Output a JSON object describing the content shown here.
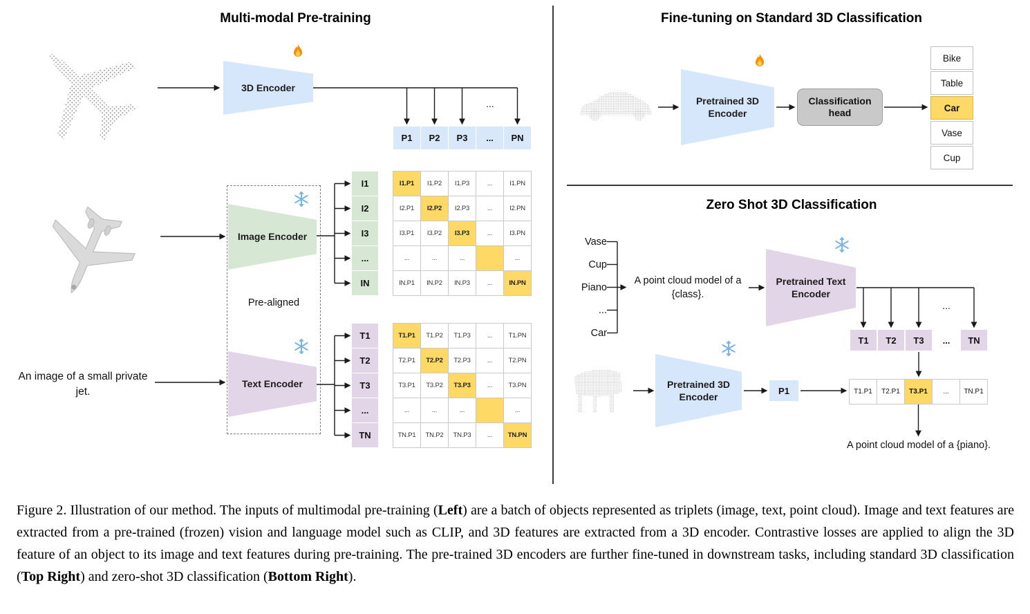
{
  "left_panel": {
    "title": "Multi-modal Pre-training",
    "encoder_3d_label": "3D Encoder",
    "image_encoder_label": "Image Encoder",
    "text_encoder_label": "Text Encoder",
    "pre_aligned_label": "Pre-aligned",
    "image_caption": "An image of a small private jet.",
    "ellipsis": "...",
    "p_row": [
      "P1",
      "P2",
      "P3",
      "...",
      "PN"
    ],
    "i_col": [
      "I1",
      "I2",
      "I3",
      "...",
      "IN"
    ],
    "t_col": [
      "T1",
      "T2",
      "T3",
      "...",
      "TN"
    ],
    "i_matrix": [
      [
        "I1.P1",
        "I1.P2",
        "I1.P3",
        "...",
        "I1.PN"
      ],
      [
        "I2.P1",
        "I2.P2",
        "I2.P3",
        "...",
        "I2.PN"
      ],
      [
        "I3.P1",
        "I3.P2",
        "I3.P3",
        "...",
        "I3.PN"
      ],
      [
        "...",
        "...",
        "...",
        "",
        "..."
      ],
      [
        "IN.P1",
        "IN.P2",
        "IN.P3",
        "...",
        "IN.PN"
      ]
    ],
    "t_matrix": [
      [
        "T1.P1",
        "T1.P2",
        "T1.P3",
        "...",
        "T1.PN"
      ],
      [
        "T2.P1",
        "T2.P2",
        "T2.P3",
        "...",
        "T2.PN"
      ],
      [
        "T3.P1",
        "T3.P2",
        "T3.P3",
        "...",
        "T3.PN"
      ],
      [
        "...",
        "...",
        "...",
        "",
        "..."
      ],
      [
        "TN.P1",
        "TN.P2",
        "TN.P3",
        "...",
        "TN.PN"
      ]
    ]
  },
  "top_right_panel": {
    "title": "Fine-tuning on Standard 3D Classification",
    "encoder_label": "Pretrained 3D Encoder",
    "classification_head_label": "Classification head",
    "classes": [
      "Bike",
      "Table",
      "Car",
      "Vase",
      "Cup"
    ],
    "highlighted_class_index": 2
  },
  "bottom_right_panel": {
    "title": "Zero Shot 3D Classification",
    "class_list": [
      "Vase",
      "Cup",
      "Piano",
      "...",
      "Car"
    ],
    "prompt_text": "A point cloud model of a {class}.",
    "text_encoder_label": "Pretrained Text Encoder",
    "encoder_3d_label": "Pretrained 3D Encoder",
    "p1_label": "P1",
    "t_row": [
      "T1",
      "T2",
      "T3",
      "...",
      "TN"
    ],
    "result_row": [
      "T1.P1",
      "T2.P1",
      "T3.P1",
      "...",
      "TN.P1"
    ],
    "highlighted_result_index": 2,
    "ellipsis": "...",
    "output_caption": "A point cloud model of a {piano}."
  },
  "icons": {
    "trainable": "fire-icon",
    "frozen": "snowflake-icon"
  },
  "accent_colors": {
    "highlight": "#fed966",
    "point_feature": "#d8e7fa",
    "image_feature": "#d6e8d4",
    "text_feature": "#e2d5e8"
  },
  "caption": {
    "segments": [
      {
        "text": "Figure 2. Illustration of our method. The inputs of multimodal pre-training (",
        "bold": false
      },
      {
        "text": "Left",
        "bold": true
      },
      {
        "text": ") are a batch of objects represented as triplets (image, text, point cloud). Image and text features are extracted from a pre-trained (frozen) vision and language model such as CLIP, and 3D features are extracted from a 3D encoder. Contrastive losses are applied to align the 3D feature of an object to its image and text features during pre-training. The pre-trained 3D encoders are further fine-tuned in downstream tasks, including standard 3D classification (",
        "bold": false
      },
      {
        "text": "Top Right",
        "bold": true
      },
      {
        "text": ") and zero-shot 3D classification (",
        "bold": false
      },
      {
        "text": "Bottom Right",
        "bold": true
      },
      {
        "text": ").",
        "bold": false
      }
    ]
  }
}
